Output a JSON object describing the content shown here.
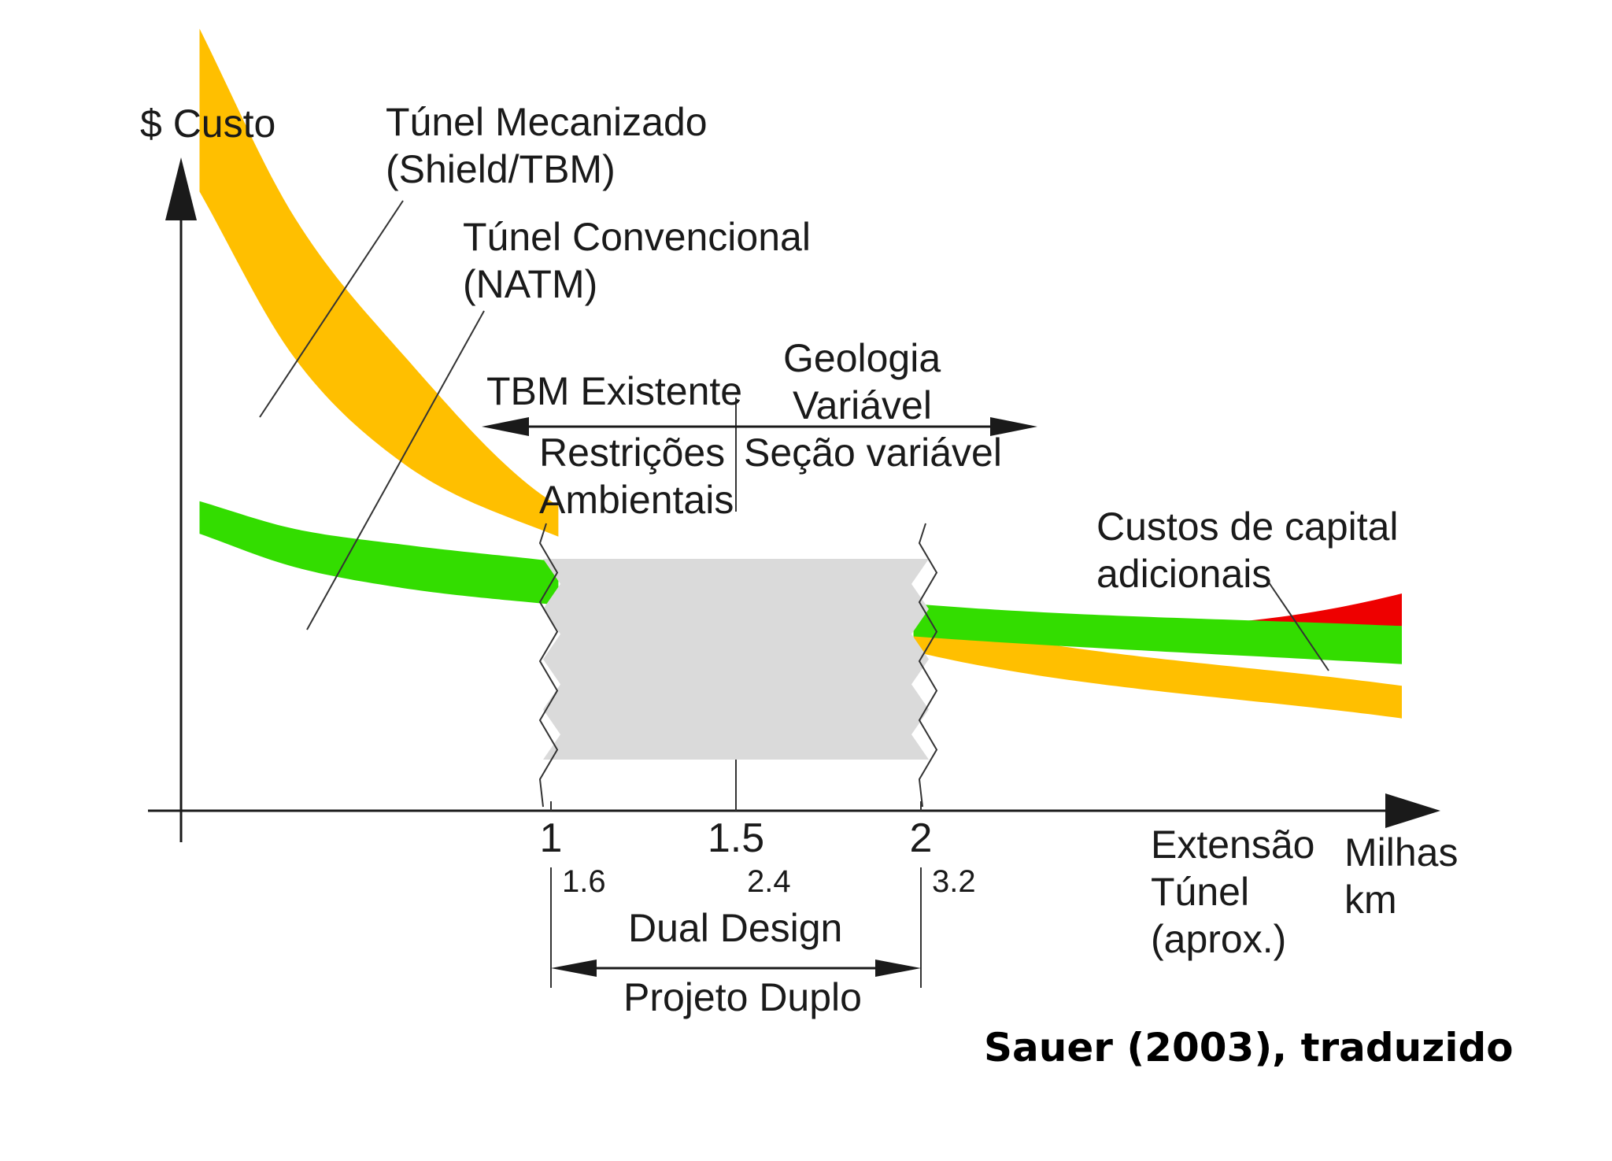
{
  "chart_data": {
    "type": "area",
    "ylabel": "$ Custo",
    "xlabel_lines": [
      "Extensão",
      "Túnel",
      "(aprox.)"
    ],
    "x_units_lines": [
      "Milhas",
      "km"
    ],
    "x_ticks_miles": [
      {
        "value": 1,
        "label": "1"
      },
      {
        "value": 1.5,
        "label": "1.5"
      },
      {
        "value": 2,
        "label": "2"
      }
    ],
    "x_ticks_km": [
      {
        "value": 1,
        "label": "1.6"
      },
      {
        "value": 1.5,
        "label": "2.4"
      },
      {
        "value": 2,
        "label": "3.2"
      }
    ],
    "series": [
      {
        "name_lines": [
          "Túnel Mecanizado",
          "(Shield/TBM)"
        ],
        "color": "#FFBF00",
        "x": [
          0.05,
          0.3,
          0.6,
          1.0,
          2.0,
          3.3
        ],
        "upper": [
          0.72,
          0.55,
          0.42,
          0.285,
          0.175,
          0.115
        ],
        "lower": [
          0.57,
          0.42,
          0.32,
          0.255,
          0.145,
          0.085
        ]
      },
      {
        "name_lines": [
          "Túnel Convencional",
          "(NATM)"
        ],
        "color": "#33DD00",
        "x": [
          0.05,
          0.3,
          0.6,
          1.0,
          2.0,
          3.3
        ],
        "upper": [
          0.285,
          0.26,
          0.245,
          0.23,
          0.19,
          0.17
        ],
        "lower": [
          0.255,
          0.225,
          0.205,
          0.19,
          0.16,
          0.135
        ]
      }
    ],
    "extra_band": {
      "name_lines": [
        "Custos de capital",
        "adicionais"
      ],
      "color": "#EE0000",
      "x": [
        2.6,
        3.3
      ],
      "upper": [
        0.17,
        0.2
      ],
      "lower": [
        0.17,
        0.17
      ]
    },
    "zone": {
      "from": 1,
      "to": 2,
      "color": "#DADADA",
      "left_labels": [
        "TBM Existente",
        "Restrições",
        "Ambientais"
      ],
      "right_labels": [
        "Geologia",
        "Variável",
        "Seção variável"
      ]
    },
    "dual_design": {
      "from": 1,
      "to": 2,
      "label_top": "Dual Design",
      "label_bottom": "Projeto Duplo"
    },
    "credit": "Sauer (2003), traduzido",
    "grid": false
  }
}
